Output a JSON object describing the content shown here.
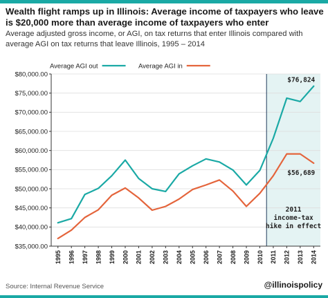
{
  "header": {
    "title": "Wealth flight ramps up in Illinois: Average income of taxpayers who leave is $20,000 more than average income of taxpayers who enter",
    "subtitle": "Average adjusted gross income, or AGI, on tax returns that enter Illinois compared with average AGI on tax returns that leave Illinois, 1995 – 2014"
  },
  "footer": {
    "source": "Source: Internal Revenue Service",
    "handle": "@illinoispolicy"
  },
  "colors": {
    "agi_out": "#1aa9a5",
    "agi_in": "#e4643b",
    "highlight": "#e4f3f3",
    "accent_bar": "#1aa9a5",
    "grid": "#dddddd",
    "axis": "#333333"
  },
  "chart_data": {
    "type": "line",
    "title": "",
    "xlabel": "",
    "ylabel": "",
    "x": [
      1995,
      1996,
      1997,
      1998,
      1999,
      2000,
      2001,
      2002,
      2003,
      2004,
      2005,
      2006,
      2007,
      2008,
      2009,
      2010,
      2011,
      2012,
      2013,
      2014
    ],
    "x_tick_labels": [
      "1995",
      "1996",
      "1997",
      "1998",
      "1999",
      "2000",
      "2001",
      "2002",
      "2003",
      "2004",
      "2005",
      "2006",
      "2007",
      "2008",
      "2009",
      "2010",
      "2011",
      "2012",
      "2013",
      "2014"
    ],
    "ylim": [
      35000,
      80000
    ],
    "y_ticks": [
      35000,
      40000,
      45000,
      50000,
      55000,
      60000,
      65000,
      70000,
      75000,
      80000
    ],
    "y_tick_labels": [
      "$35,000.00",
      "$40,000.00",
      "$45,000.00",
      "$50,000.00",
      "$55,000.00",
      "$60,000.00",
      "$65,000.00",
      "$70,000.00",
      "$75,000.00",
      "$80,000.00"
    ],
    "grid": true,
    "legend_position": "top",
    "series": [
      {
        "name": "Average AGI out",
        "color": "#1aa9a5",
        "values": [
          41100,
          42200,
          48500,
          50100,
          53400,
          57500,
          52700,
          50000,
          49300,
          53900,
          56000,
          57800,
          57000,
          54900,
          51000,
          54800,
          63200,
          73700,
          72800,
          76824
        ]
      },
      {
        "name": "Average AGI in",
        "color": "#e4643b",
        "values": [
          37000,
          39200,
          42500,
          44500,
          48300,
          50200,
          47600,
          44400,
          45400,
          47300,
          49800,
          51000,
          52300,
          49400,
          45400,
          48800,
          53400,
          59100,
          59100,
          56689
        ]
      }
    ],
    "highlight": {
      "from": 2011,
      "to": 2014,
      "label_lines": [
        "2011",
        "income-tax",
        "hike in effect"
      ]
    },
    "end_labels": {
      "agi_out": "$76,824",
      "agi_in": "$56,689"
    }
  }
}
